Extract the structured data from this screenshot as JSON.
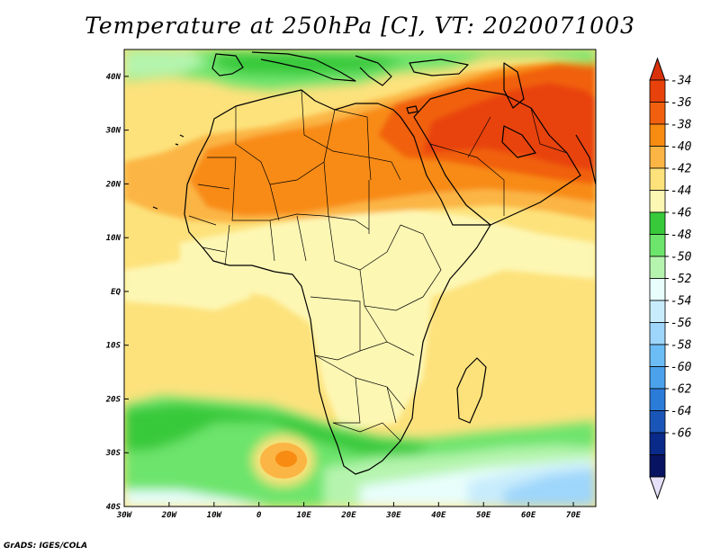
{
  "title": "Temperature at 250hPa [C], VT: 2020071003",
  "credit": "GrADS: IGES/COLA",
  "map": {
    "lon_range": [
      -30,
      75
    ],
    "lat_range": [
      -40,
      45
    ],
    "lon_ticks": [
      {
        "value": -30,
        "label": "30W"
      },
      {
        "value": -20,
        "label": "20W"
      },
      {
        "value": -10,
        "label": "10W"
      },
      {
        "value": 0,
        "label": "0"
      },
      {
        "value": 10,
        "label": "10E"
      },
      {
        "value": 20,
        "label": "20E"
      },
      {
        "value": 30,
        "label": "30E"
      },
      {
        "value": 40,
        "label": "40E"
      },
      {
        "value": 50,
        "label": "50E"
      },
      {
        "value": 60,
        "label": "60E"
      },
      {
        "value": 70,
        "label": "70E"
      }
    ],
    "lat_ticks": [
      {
        "value": 40,
        "label": "40N"
      },
      {
        "value": 30,
        "label": "30N"
      },
      {
        "value": 20,
        "label": "20N"
      },
      {
        "value": 10,
        "label": "10N"
      },
      {
        "value": 0,
        "label": "EQ"
      },
      {
        "value": -10,
        "label": "10S"
      },
      {
        "value": -20,
        "label": "20S"
      },
      {
        "value": -30,
        "label": "30S"
      },
      {
        "value": -40,
        "label": "40S"
      }
    ]
  },
  "colorbar": {
    "levels": [
      "-34",
      "-36",
      "-38",
      "-40",
      "-42",
      "-44",
      "-46",
      "-48",
      "-50",
      "-52",
      "-54",
      "-56",
      "-58",
      "-60",
      "-62",
      "-64",
      "-66"
    ],
    "colors": [
      "#e8420c",
      "#f1600f",
      "#f88b12",
      "#fbb545",
      "#fde27c",
      "#fdf7b4",
      "#37c93a",
      "#6de46c",
      "#b5f4ae",
      "#e8fefc",
      "#c8ecfc",
      "#9ed6fb",
      "#6cbcf5",
      "#4ba2eb",
      "#2b7bd9",
      "#1a56b8",
      "#0a2a8a",
      "#081461"
    ],
    "top_color": "#d9320a",
    "bottom_color": "#e6e0fa"
  }
}
